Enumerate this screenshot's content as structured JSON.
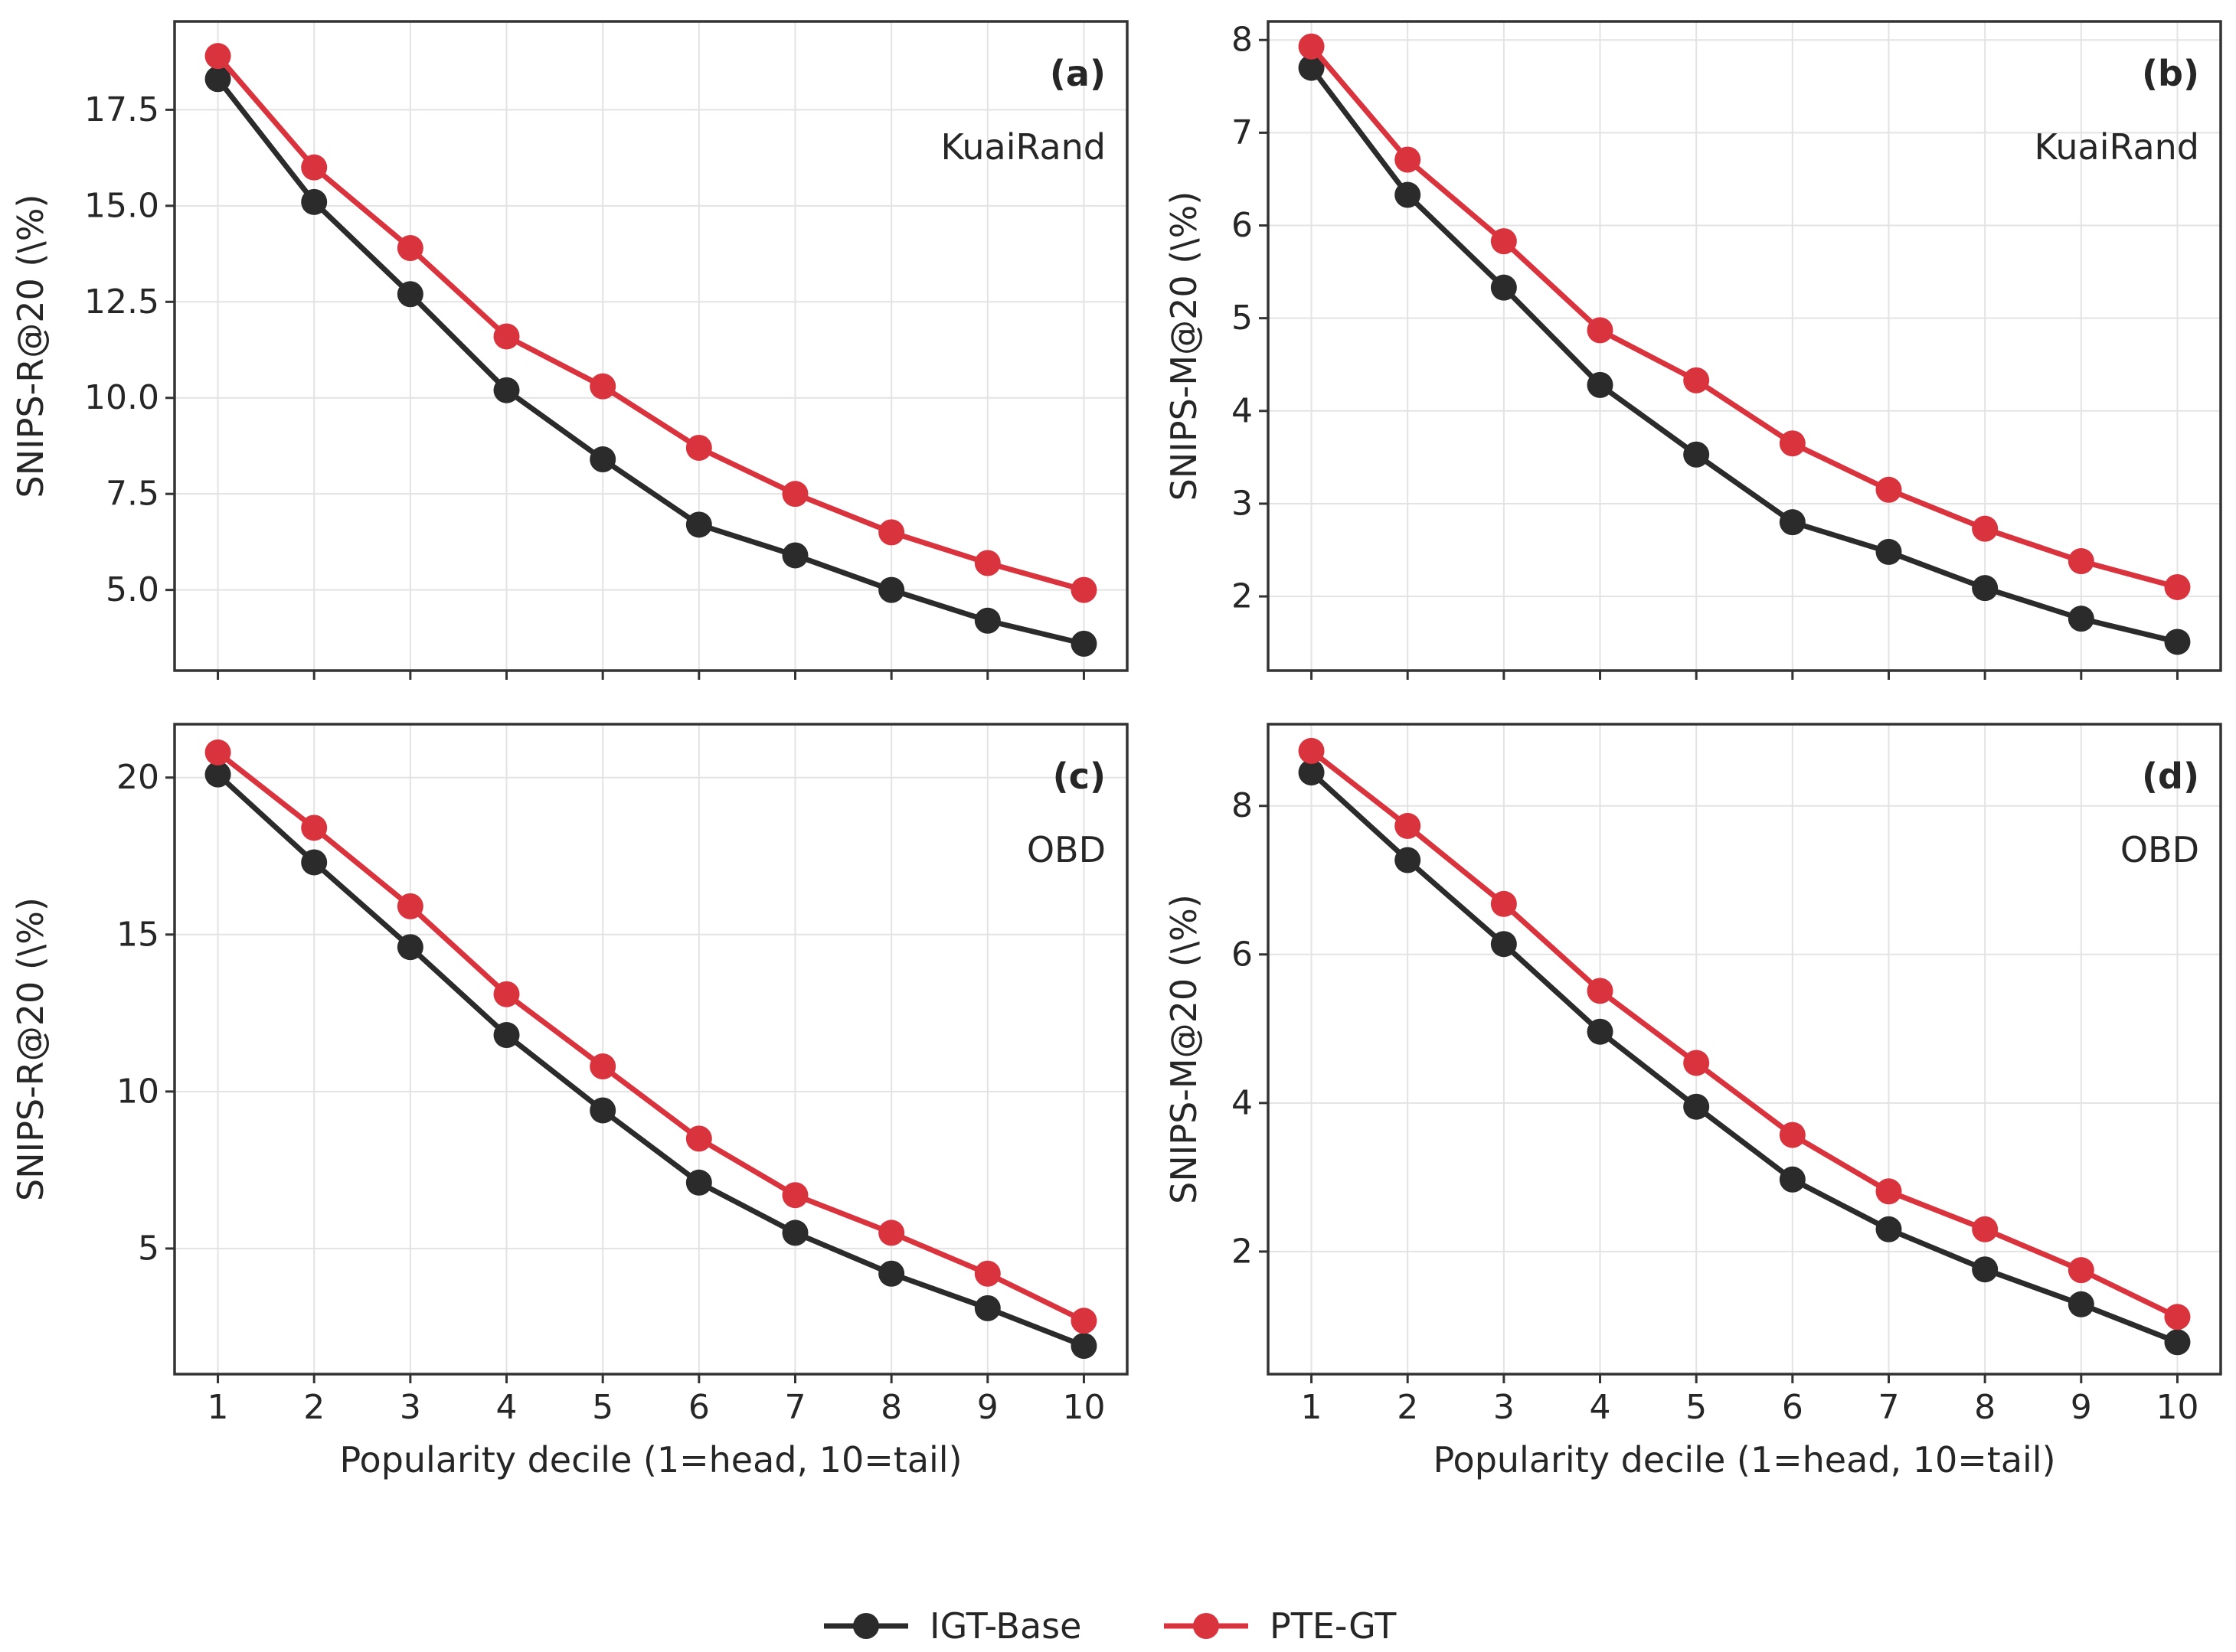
{
  "colors": {
    "IGT-Base": "#2b2b2b",
    "PTE-GT": "#d9343e",
    "grid": "#e3e3e3",
    "frame": "#333333"
  },
  "legend": {
    "placement": "bottom-center",
    "items": [
      "IGT-Base",
      "PTE-GT"
    ]
  },
  "chart_data": [
    {
      "type": "line",
      "panel": "(a)",
      "dataset": "KuaiRand",
      "xlabel": "",
      "ylabel": "SNIPS-R@20 (\\%)",
      "x": [
        1,
        2,
        3,
        4,
        5,
        6,
        7,
        8,
        9,
        10
      ],
      "ylim": [
        2.9,
        19.8
      ],
      "yticks": [
        "5.0",
        "7.5",
        "10.0",
        "12.5",
        "15.0",
        "17.5"
      ],
      "xticklabels_visible": false,
      "grid": true,
      "series": [
        {
          "name": "IGT-Base",
          "values": [
            18.3,
            15.1,
            12.7,
            10.2,
            8.4,
            6.7,
            5.9,
            5.0,
            4.2,
            3.6
          ]
        },
        {
          "name": "PTE-GT",
          "values": [
            18.9,
            16.0,
            13.9,
            11.6,
            10.3,
            8.7,
            7.5,
            6.5,
            5.7,
            5.0
          ]
        }
      ]
    },
    {
      "type": "line",
      "panel": "(b)",
      "dataset": "KuaiRand",
      "xlabel": "",
      "ylabel": "SNIPS-M@20 (\\%)",
      "x": [
        1,
        2,
        3,
        4,
        5,
        6,
        7,
        8,
        9,
        10
      ],
      "ylim": [
        1.2,
        8.2
      ],
      "yticks": [
        "2",
        "3",
        "4",
        "5",
        "6",
        "7",
        "8"
      ],
      "xticklabels_visible": false,
      "grid": true,
      "series": [
        {
          "name": "IGT-Base",
          "values": [
            7.7,
            6.33,
            5.33,
            4.28,
            3.53,
            2.8,
            2.48,
            2.09,
            1.76,
            1.51
          ]
        },
        {
          "name": "PTE-GT",
          "values": [
            7.93,
            6.71,
            5.83,
            4.87,
            4.33,
            3.65,
            3.15,
            2.73,
            2.38,
            2.1
          ]
        }
      ]
    },
    {
      "type": "line",
      "panel": "(c)",
      "dataset": "OBD",
      "xlabel": "Popularity decile (1=head, 10=tail)",
      "ylabel": "SNIPS-R@20 (\\%)",
      "x": [
        1,
        2,
        3,
        4,
        5,
        6,
        7,
        8,
        9,
        10
      ],
      "ylim": [
        1.0,
        21.7
      ],
      "yticks": [
        "5",
        "10",
        "15",
        "20"
      ],
      "xticklabels": [
        "1",
        "2",
        "3",
        "4",
        "5",
        "6",
        "7",
        "8",
        "9",
        "10"
      ],
      "xticklabels_visible": true,
      "grid": true,
      "series": [
        {
          "name": "IGT-Base",
          "values": [
            20.1,
            17.3,
            14.6,
            11.8,
            9.4,
            7.1,
            5.5,
            4.2,
            3.1,
            1.9
          ]
        },
        {
          "name": "PTE-GT",
          "values": [
            20.8,
            18.4,
            15.9,
            13.1,
            10.8,
            8.5,
            6.7,
            5.5,
            4.2,
            2.7
          ]
        }
      ]
    },
    {
      "type": "line",
      "panel": "(d)",
      "dataset": "OBD",
      "xlabel": "Popularity decile (1=head, 10=tail)",
      "ylabel": "SNIPS-M@20 (\\%)",
      "x": [
        1,
        2,
        3,
        4,
        5,
        6,
        7,
        8,
        9,
        10
      ],
      "ylim": [
        0.35,
        9.1
      ],
      "yticks": [
        "2",
        "4",
        "6",
        "8"
      ],
      "xticklabels": [
        "1",
        "2",
        "3",
        "4",
        "5",
        "6",
        "7",
        "8",
        "9",
        "10"
      ],
      "xticklabels_visible": true,
      "grid": true,
      "series": [
        {
          "name": "IGT-Base",
          "values": [
            8.45,
            7.27,
            6.14,
            4.96,
            3.95,
            2.97,
            2.3,
            1.76,
            1.29,
            0.78
          ]
        },
        {
          "name": "PTE-GT",
          "values": [
            8.74,
            7.73,
            6.68,
            5.51,
            4.54,
            3.57,
            2.81,
            2.3,
            1.75,
            1.12
          ]
        }
      ]
    }
  ]
}
